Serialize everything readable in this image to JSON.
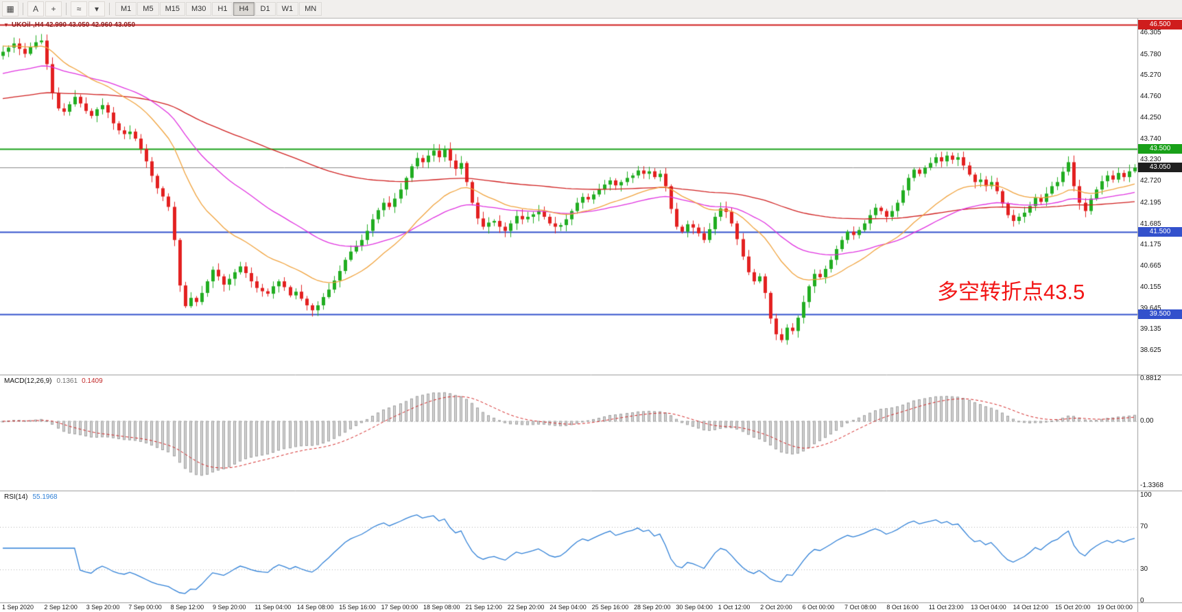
{
  "toolbar": {
    "items": [
      {
        "type": "icon",
        "name": "chart-properties-icon",
        "glyph": "▦"
      },
      {
        "type": "sep"
      },
      {
        "type": "icon",
        "name": "text-tool-icon",
        "glyph": "A"
      },
      {
        "type": "icon",
        "name": "crosshair-tool-icon",
        "glyph": "+"
      },
      {
        "type": "sep"
      },
      {
        "type": "icon",
        "name": "indicators-icon",
        "glyph": "≈"
      },
      {
        "type": "icon",
        "name": "indicators-dropdown-icon",
        "glyph": "▾"
      },
      {
        "type": "sep"
      }
    ],
    "timeframes": [
      "M1",
      "M5",
      "M15",
      "M30",
      "H1",
      "H4",
      "D1",
      "W1",
      "MN"
    ],
    "active_timeframe": "H4"
  },
  "chart": {
    "marker": "▼",
    "title": "UKOil-,H4 42.990 43.050 42.960 43.050",
    "symbol": "UKOil-",
    "period": "H4",
    "open": "42.990",
    "high": "43.050",
    "low": "42.960",
    "close": "43.050",
    "annotation": {
      "text": "多空转折点43.5",
      "color": "#f21616"
    }
  },
  "macd_panel": {
    "label": "MACD(12,26,9)",
    "value_main": "0.1361",
    "value_signal": "0.1409",
    "axis_labels": [
      "0.8812",
      "0.00",
      "-1.3368"
    ]
  },
  "rsi_panel": {
    "label": "RSI(14)",
    "value": "55.1968",
    "axis_labels": [
      "100",
      "70",
      "30",
      "0"
    ]
  },
  "chart_data": {
    "type": "candlestick",
    "symbol": "UKOil-",
    "timeframe": "H4",
    "price_range": [
      38.625,
      46.305
    ],
    "price_axis_labels": [
      "46.305",
      "45.780",
      "45.270",
      "44.760",
      "44.250",
      "43.740",
      "43.230",
      "42.720",
      "42.195",
      "41.685",
      "41.175",
      "40.665",
      "40.155",
      "39.645",
      "39.135",
      "38.625"
    ],
    "time_axis_labels": [
      "1 Sep 2020",
      "2 Sep 12:00",
      "3 Sep 20:00",
      "7 Sep 00:00",
      "8 Sep 12:00",
      "9 Sep 20:00",
      "11 Sep 04:00",
      "14 Sep 08:00",
      "15 Sep 16:00",
      "17 Sep 00:00",
      "18 Sep 08:00",
      "21 Sep 12:00",
      "22 Sep 20:00",
      "24 Sep 04:00",
      "25 Sep 16:00",
      "28 Sep 20:00",
      "30 Sep 04:00",
      "1 Oct 12:00",
      "2 Oct 20:00",
      "6 Oct 00:00",
      "7 Oct 08:00",
      "8 Oct 16:00",
      "11 Oct 23:00",
      "13 Oct 04:00",
      "14 Oct 12:00",
      "15 Oct 20:00",
      "19 Oct 00:00"
    ],
    "hlines": [
      {
        "price": 46.5,
        "label": "46.500",
        "color": "#cf1d1d",
        "width": 2
      },
      {
        "price": 43.5,
        "label": "43.500",
        "color": "#18a018",
        "width": 2
      },
      {
        "price": 41.5,
        "label": "41.500",
        "color": "#3351cc",
        "width": 2
      },
      {
        "price": 39.5,
        "label": "39.500",
        "color": "#3351cc",
        "width": 2
      }
    ],
    "current_price": {
      "price": 43.05,
      "label": "43.050",
      "line_color": "#8a8a8a",
      "tag_color": "#1f1f1f"
    },
    "candles": {
      "open_first": 45.75,
      "up_color": "#21ad21",
      "down_color": "#e32020",
      "closes": [
        45.85,
        45.95,
        46.05,
        45.92,
        45.8,
        45.96,
        46.08,
        46.12,
        45.55,
        44.85,
        44.48,
        44.4,
        44.58,
        44.76,
        44.6,
        44.42,
        44.3,
        44.46,
        44.56,
        44.38,
        44.12,
        43.95,
        43.86,
        43.92,
        43.75,
        43.5,
        43.2,
        42.85,
        42.55,
        42.35,
        42.1,
        41.3,
        40.2,
        39.7,
        39.9,
        39.8,
        40.02,
        40.3,
        40.58,
        40.42,
        40.22,
        40.36,
        40.52,
        40.66,
        40.5,
        40.3,
        40.14,
        40.06,
        40.0,
        40.18,
        40.3,
        40.16,
        39.96,
        40.05,
        39.88,
        39.72,
        39.6,
        39.72,
        39.92,
        40.1,
        40.32,
        40.55,
        40.82,
        41.02,
        41.16,
        41.3,
        41.52,
        41.8,
        42.02,
        42.2,
        42.1,
        42.3,
        42.52,
        42.8,
        43.08,
        43.28,
        43.18,
        43.34,
        43.46,
        43.3,
        43.5,
        43.22,
        43.02,
        43.16,
        42.7,
        42.2,
        41.82,
        41.62,
        41.72,
        41.76,
        41.62,
        41.52,
        41.7,
        41.88,
        41.8,
        41.86,
        41.92,
        42.0,
        41.86,
        41.7,
        41.62,
        41.66,
        41.8,
        42.0,
        42.2,
        42.34,
        42.28,
        42.4,
        42.52,
        42.64,
        42.74,
        42.62,
        42.7,
        42.8,
        42.86,
        42.98,
        42.9,
        42.96,
        42.82,
        42.9,
        42.6,
        42.05,
        41.62,
        41.5,
        41.68,
        41.6,
        41.46,
        41.3,
        41.56,
        41.86,
        42.06,
        41.98,
        41.7,
        41.32,
        40.9,
        40.52,
        40.3,
        40.42,
        40.02,
        39.4,
        39.02,
        38.88,
        39.18,
        39.1,
        39.42,
        39.8,
        40.18,
        40.48,
        40.4,
        40.6,
        40.82,
        41.08,
        41.3,
        41.5,
        41.42,
        41.54,
        41.7,
        41.9,
        42.08,
        42.0,
        41.86,
        42.0,
        42.2,
        42.5,
        42.8,
        43.0,
        42.9,
        43.05,
        43.16,
        43.3,
        43.2,
        43.34,
        43.24,
        43.3,
        43.1,
        42.88,
        42.7,
        42.76,
        42.6,
        42.7,
        42.48,
        42.18,
        41.9,
        41.76,
        41.86,
        41.96,
        42.12,
        42.32,
        42.22,
        42.42,
        42.6,
        42.7,
        42.95,
        43.18,
        42.6,
        42.2,
        42.0,
        42.3,
        42.52,
        42.72,
        42.86,
        42.76,
        42.92,
        42.82,
        42.96,
        43.05
      ]
    },
    "moving_averages": [
      {
        "name": "ma-fast",
        "color": "#f0a23c",
        "period": 21,
        "seed": 46.0
      },
      {
        "name": "ma-mid",
        "color": "#df2fdf",
        "period": 44,
        "seed": 45.3
      },
      {
        "name": "ma-slow",
        "color": "#cf1d1d",
        "period": 130,
        "seed": 44.7
      }
    ],
    "macd": {
      "fast": 12,
      "slow": 26,
      "signal": 9,
      "hist_color": "#d2d2d2",
      "hist_border": "#a0a0a0",
      "signal_color": "#d22424",
      "plot_scale": 0.85,
      "range": [
        -1.43,
        0.95
      ]
    },
    "rsi": {
      "period": 14,
      "color": "#2e7fd6",
      "levels": [
        70,
        30
      ]
    }
  }
}
